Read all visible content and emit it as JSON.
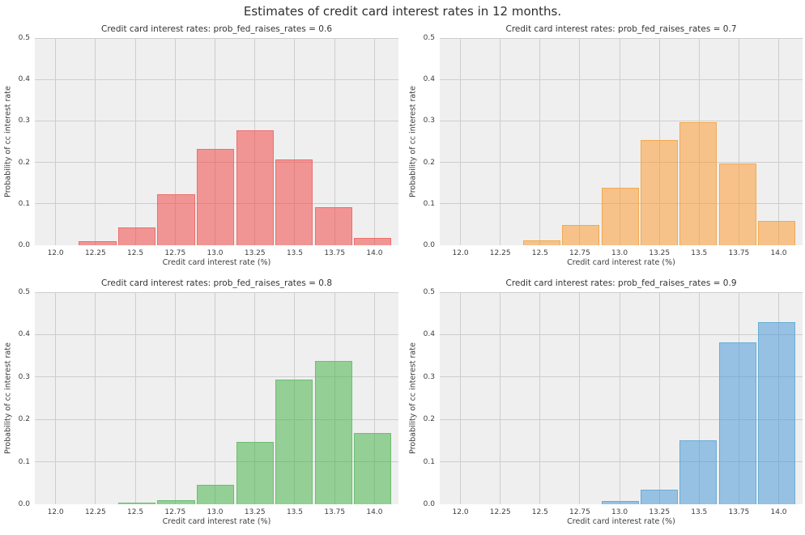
{
  "figure": {
    "title": "Estimates of credit card interest rates in 12 months."
  },
  "axes_style": {
    "plot_background": "#efefef",
    "grid_color": "#cdcdcd",
    "grid": "on",
    "tick_color": "#3c3c3c",
    "title_color": "#333333"
  },
  "chart_data": [
    {
      "type": "bar",
      "title": "Credit card interest rates: prob_fed_raises_rates = 0.6",
      "xlabel": "Credit card interest rate (%)",
      "ylabel": "Probability of cc interest rate",
      "xlim": [
        11.87,
        14.15
      ],
      "ylim": [
        0,
        0.5
      ],
      "xticks": [
        "12.0",
        "12.25",
        "12.5",
        "12.75",
        "13.0",
        "13.25",
        "13.5",
        "13.75",
        "14.0"
      ],
      "yticks": [
        "0.0",
        "0.1",
        "0.2",
        "0.3",
        "0.4",
        "0.5"
      ],
      "bin_width": 0.2465,
      "first_edge": 12.14,
      "bin_centers": [
        12.26,
        12.51,
        12.76,
        13.0,
        13.25,
        13.5,
        13.74,
        13.99
      ],
      "values": [
        0.01,
        0.043,
        0.123,
        0.232,
        0.278,
        0.208,
        0.091,
        0.017
      ],
      "fill": "rgba(243,74,73,0.55)",
      "edge": "#ec6f6c"
    },
    {
      "type": "bar",
      "title": "Credit card interest rates: prob_fed_raises_rates = 0.7",
      "xlabel": "Credit card interest rate (%)",
      "ylabel": "Probability of cc interest rate",
      "xlim": [
        11.87,
        14.15
      ],
      "ylim": [
        0,
        0.5
      ],
      "xticks": [
        "12.0",
        "12.25",
        "12.5",
        "12.75",
        "13.0",
        "13.25",
        "13.5",
        "13.75",
        "14.0"
      ],
      "yticks": [
        "0.0",
        "0.1",
        "0.2",
        "0.3",
        "0.4",
        "0.5"
      ],
      "bin_width": 0.2465,
      "first_edge": 12.3865,
      "bin_centers": [
        12.51,
        12.76,
        13.0,
        13.25,
        13.5,
        13.74,
        13.99
      ],
      "values": [
        0.012,
        0.048,
        0.138,
        0.254,
        0.297,
        0.198,
        0.058
      ],
      "fill": "rgba(251,157,55,0.55)",
      "edge": "#f3a94f"
    },
    {
      "type": "bar",
      "title": "Credit card interest rates: prob_fed_raises_rates = 0.8",
      "xlabel": "Credit card interest rate (%)",
      "ylabel": "Probability of cc interest rate",
      "xlim": [
        11.87,
        14.15
      ],
      "ylim": [
        0,
        0.5
      ],
      "xticks": [
        "12.0",
        "12.25",
        "12.5",
        "12.75",
        "13.0",
        "13.25",
        "13.5",
        "13.75",
        "14.0"
      ],
      "yticks": [
        "0.0",
        "0.1",
        "0.2",
        "0.3",
        "0.4",
        "0.5"
      ],
      "bin_width": 0.2465,
      "first_edge": 12.3865,
      "bin_centers": [
        12.51,
        12.76,
        13.0,
        13.25,
        13.5,
        13.74,
        13.99
      ],
      "values": [
        0.003,
        0.01,
        0.046,
        0.147,
        0.294,
        0.337,
        0.167
      ],
      "fill": "rgba(73,181,77,0.55)",
      "edge": "#6ebe72"
    },
    {
      "type": "bar",
      "title": "Credit card interest rates: prob_fed_raises_rates = 0.9",
      "xlabel": "Credit card interest rate (%)",
      "ylabel": "Probability of cc interest rate",
      "xlim": [
        11.87,
        14.15
      ],
      "ylim": [
        0,
        0.5
      ],
      "xticks": [
        "12.0",
        "12.25",
        "12.5",
        "12.75",
        "13.0",
        "13.25",
        "13.5",
        "13.75",
        "14.0"
      ],
      "yticks": [
        "0.0",
        "0.1",
        "0.2",
        "0.3",
        "0.4",
        "0.5"
      ],
      "bin_width": 0.2465,
      "first_edge": 12.8795,
      "bin_centers": [
        13.0,
        13.25,
        13.5,
        13.74,
        13.99
      ],
      "values": [
        0.008,
        0.034,
        0.15,
        0.382,
        0.429
      ],
      "fill": "rgba(77,155,215,0.55)",
      "edge": "#69add5"
    }
  ]
}
